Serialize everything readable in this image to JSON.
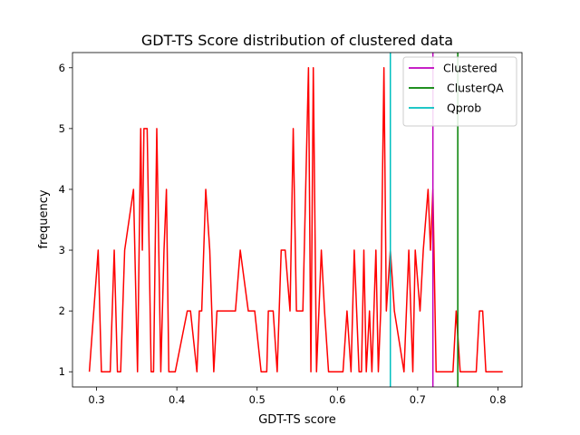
{
  "chart_data": {
    "type": "line",
    "title": "GDT-TS Score distribution of clustered data",
    "xlabel": "GDT-TS score",
    "ylabel": "frequency",
    "xlim": [
      0.27,
      0.83
    ],
    "ylim": [
      0.75,
      6.25
    ],
    "xticks": [
      0.3,
      0.4,
      0.5,
      0.6,
      0.7,
      0.8
    ],
    "xtick_labels": [
      "0.3",
      "0.4",
      "0.5",
      "0.6",
      "0.7",
      "0.8"
    ],
    "yticks": [
      1,
      2,
      3,
      4,
      5,
      6
    ],
    "ytick_labels": [
      "1",
      "2",
      "3",
      "4",
      "5",
      "6"
    ],
    "series": [
      {
        "name": "frequency",
        "color": "#ff0000",
        "x": [
          0.291,
          0.302,
          0.306,
          0.312,
          0.317,
          0.322,
          0.326,
          0.33,
          0.335,
          0.346,
          0.351,
          0.355,
          0.357,
          0.359,
          0.363,
          0.368,
          0.371,
          0.375,
          0.38,
          0.384,
          0.387,
          0.39,
          0.395,
          0.398,
          0.413,
          0.417,
          0.425,
          0.428,
          0.431,
          0.436,
          0.441,
          0.446,
          0.45,
          0.455,
          0.473,
          0.479,
          0.489,
          0.497,
          0.505,
          0.512,
          0.514,
          0.52,
          0.525,
          0.53,
          0.535,
          0.541,
          0.545,
          0.549,
          0.557,
          0.564,
          0.567,
          0.57,
          0.574,
          0.577,
          0.58,
          0.584,
          0.589,
          0.593,
          0.607,
          0.612,
          0.617,
          0.621,
          0.627,
          0.63,
          0.633,
          0.636,
          0.64,
          0.643,
          0.648,
          0.651,
          0.654,
          0.658,
          0.661,
          0.666,
          0.671,
          0.683,
          0.689,
          0.694,
          0.697,
          0.703,
          0.707,
          0.713,
          0.716,
          0.719,
          0.723,
          0.726,
          0.744,
          0.748,
          0.753,
          0.773,
          0.777,
          0.781,
          0.785,
          0.79,
          0.806
        ],
        "y": [
          1,
          3,
          1,
          1,
          1,
          3,
          1,
          1,
          3,
          4,
          1,
          5,
          3,
          5,
          5,
          1,
          1,
          5,
          1,
          3,
          4,
          1,
          1,
          1,
          2,
          2,
          1,
          2,
          2,
          4,
          3,
          1,
          2,
          2,
          2,
          3,
          2,
          2,
          1,
          1,
          2,
          2,
          1,
          3,
          3,
          2,
          5,
          2,
          2,
          6,
          1,
          6,
          1,
          2,
          3,
          2,
          1,
          1,
          1,
          2,
          1,
          3,
          1,
          1,
          3,
          1,
          2,
          1,
          3,
          1,
          2,
          6,
          2,
          3,
          2,
          1,
          3,
          1,
          3,
          2,
          3,
          4,
          3,
          4,
          1,
          1,
          1,
          2,
          1,
          1,
          2,
          2,
          1,
          1,
          1
        ]
      }
    ],
    "vlines": [
      {
        "name": "Clustered",
        "x": 0.719,
        "color": "#bf00bf"
      },
      {
        "name": "ClusterQA",
        "x": 0.75,
        "color": "#008000"
      },
      {
        "name": "Qprob",
        "x": 0.666,
        "color": "#00bfbf"
      }
    ],
    "legend": {
      "position": "top-right",
      "entries": [
        {
          "label": "Clustered",
          "color": "#bf00bf"
        },
        {
          "label": " ClusterQA",
          "color": "#008000"
        },
        {
          "label": " Qprob",
          "color": "#00bfbf"
        }
      ]
    },
    "grid": false
  }
}
